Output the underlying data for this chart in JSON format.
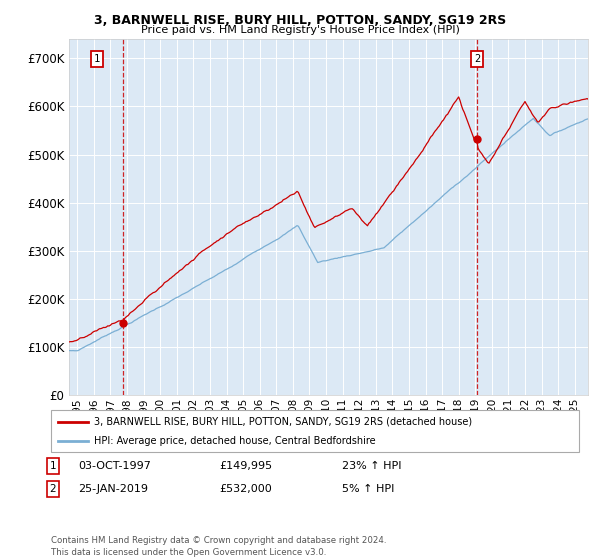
{
  "title1": "3, BARNWELL RISE, BURY HILL, POTTON, SANDY, SG19 2RS",
  "title2": "Price paid vs. HM Land Registry's House Price Index (HPI)",
  "legend_line1": "3, BARNWELL RISE, BURY HILL, POTTON, SANDY, SG19 2RS (detached house)",
  "legend_line2": "HPI: Average price, detached house, Central Bedfordshire",
  "annotation1_date": "03-OCT-1997",
  "annotation1_price": "£149,995",
  "annotation1_hpi": "23% ↑ HPI",
  "annotation2_date": "25-JAN-2019",
  "annotation2_price": "£532,000",
  "annotation2_hpi": "5% ↑ HPI",
  "footer": "Contains HM Land Registry data © Crown copyright and database right 2024.\nThis data is licensed under the Open Government Licence v3.0.",
  "sale1_year": 1997.75,
  "sale1_price": 149995,
  "sale2_year": 2019.07,
  "sale2_price": 532000,
  "hpi_color": "#7bafd4",
  "price_color": "#cc0000",
  "plot_bg": "#dce9f5",
  "ylabel_values": [
    0,
    100000,
    200000,
    300000,
    400000,
    500000,
    600000,
    700000
  ],
  "ylabel_labels": [
    "£0",
    "£100K",
    "£200K",
    "£300K",
    "£400K",
    "£500K",
    "£600K",
    "£700K"
  ],
  "xmin": 1994.5,
  "xmax": 2025.8,
  "ymin": 0,
  "ymax": 740000
}
